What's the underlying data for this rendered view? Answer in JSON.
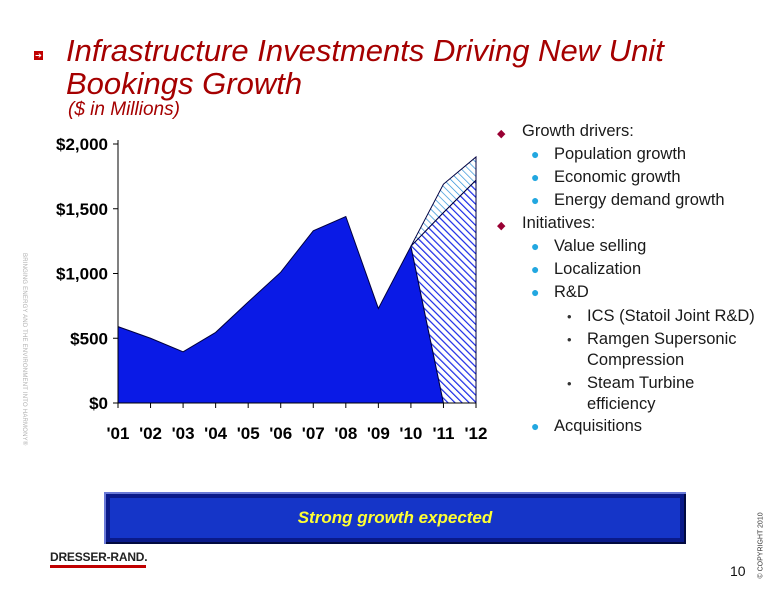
{
  "title": "Infrastructure Investments Driving New Unit Bookings Growth",
  "subtitle": "($ in Millions)",
  "chart_data": {
    "type": "area",
    "categories": [
      "'01",
      "'02",
      "'03",
      "'04",
      "'05",
      "'06",
      "'07",
      "'08",
      "'09",
      "'10",
      "'11",
      "'12"
    ],
    "series": [
      {
        "values": [
          590,
          500,
          395,
          545,
          780,
          1010,
          1330,
          1440,
          730,
          1210,
          0,
          0
        ],
        "color": "#0a1ae6"
      },
      {
        "values": [
          null,
          null,
          null,
          null,
          null,
          null,
          null,
          null,
          null,
          1210,
          1470,
          1720
        ],
        "color": "#1a2ae6",
        "pattern": "hatched"
      },
      {
        "values": [
          null,
          null,
          null,
          null,
          null,
          null,
          null,
          null,
          null,
          1210,
          1690,
          1900
        ],
        "color": "#aee6ff",
        "pattern": "hatched"
      }
    ],
    "y_tick_labels": [
      "$0",
      "$500",
      "$1,000",
      "$1,500",
      "$2,000"
    ],
    "y_ticks": [
      0,
      500,
      1000,
      1500,
      2000
    ],
    "ylim": [
      0,
      2000
    ],
    "grid": false
  },
  "bullets": {
    "l1a": "Growth drivers:",
    "l2a": "Population growth",
    "l2b": "Economic growth",
    "l2c": "Energy demand growth",
    "l1b": "Initiatives:",
    "l2d": "Value selling",
    "l2e": "Localization",
    "l2f": "R&D",
    "l3a": "ICS (Statoil Joint R&D)",
    "l3b": "Ramgen Supersonic Compression",
    "l3c": "Steam Turbine efficiency",
    "l2g": "Acquisitions"
  },
  "side_text": "BRINGING ENERGY AND THE ENVIRONMENT INTO HARMONY®",
  "copyright": "© COPYRIGHT 2010",
  "banner": "Strong growth expected",
  "logo": "DRESSER-RAND.",
  "page_number": "10",
  "colors": {
    "title": "#a50000",
    "area": "#0a1ae6",
    "banner": "#1535c8",
    "banner_text": "#ffff33"
  }
}
